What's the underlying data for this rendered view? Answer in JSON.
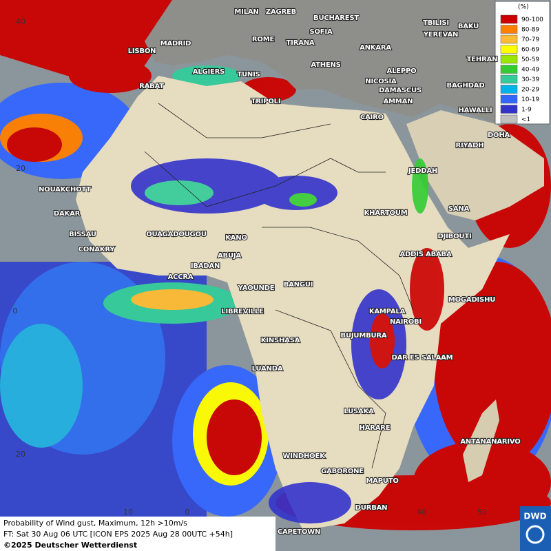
{
  "map": {
    "cities": [
      "MILAN",
      "ZAGREB",
      "BUCHAREST",
      "TBILISI",
      "BAKU",
      "MADRID",
      "ROME",
      "SOFIA",
      "YEREVAN",
      "LISBON",
      "TIRANA",
      "ANKARA",
      "TEHRAN",
      "ALGIERS",
      "TUNIS",
      "ATHENS",
      "ALEPPO",
      "RABAT",
      "NICOSIA",
      "BAGHDAD",
      "TRIPOLI",
      "DAMASCUS",
      "AMMAN",
      "HAWALLI",
      "CAIRO",
      "RIYADH",
      "DOHA",
      "JEDDAH",
      "NOUAKCHOTT",
      "DAKAR",
      "KHARTOUM",
      "SANA",
      "BISSAU",
      "OUAGADOUGOU",
      "KANO",
      "DJIBOUTI",
      "CONAKRY",
      "ABUJA",
      "ADDIS ABABA",
      "IBADAN",
      "ACCRA",
      "YAOUNDE",
      "BANGUI",
      "MOGADISHU",
      "LIBREVILLE",
      "KAMPALA",
      "NAIROBI",
      "BUJUMBURA",
      "KINSHASA",
      "DAR ES SALAAM",
      "LUANDA",
      "LUSAKA",
      "HARARE",
      "ANTANANARIVO",
      "WINDHOEK",
      "GABORONE",
      "MAPUTO",
      "DURBAN",
      "CAPETOWN"
    ],
    "latitude_labels": [
      "40",
      "20",
      "0",
      "20"
    ],
    "longitude_labels": [
      "10",
      "0",
      "40",
      "50"
    ]
  },
  "legend": {
    "unit": "(%)",
    "items": [
      {
        "label": "90-100",
        "color": "#cc0000"
      },
      {
        "label": "80-89",
        "color": "#ff7f00"
      },
      {
        "label": "70-79",
        "color": "#ffbb33"
      },
      {
        "label": "60-69",
        "color": "#ffff00"
      },
      {
        "label": "50-59",
        "color": "#99e600"
      },
      {
        "label": "40-49",
        "color": "#33cc33"
      },
      {
        "label": "30-39",
        "color": "#33cc99"
      },
      {
        "label": "20-29",
        "color": "#00b3e6"
      },
      {
        "label": "10-19",
        "color": "#3366ff"
      },
      {
        "label": "1-9",
        "color": "#3333cc"
      },
      {
        "label": "<1",
        "color": "#bfbfbf"
      }
    ]
  },
  "footer": {
    "lines": [
      "Probability of Wind gust, Maximum, 12h >10m/s",
      "FT: Sat 30 Aug 06 UTC [ICON EPS 2025 Aug 28 00UTC +54h]",
      "©2025 Deutscher Wetterdienst"
    ]
  },
  "logo": "DWD"
}
